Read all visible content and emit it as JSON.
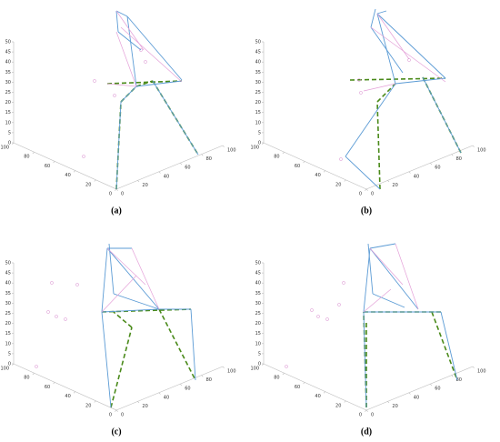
{
  "panels": [
    {
      "caption": "(a)",
      "zticks": [
        0,
        5,
        10,
        15,
        20,
        25,
        30,
        35,
        40,
        45,
        50
      ],
      "xticks": [
        0,
        20,
        40,
        60,
        80,
        100
      ],
      "yticks": [
        0,
        20,
        40,
        60,
        80,
        100
      ]
    },
    {
      "caption": "(b)",
      "zticks": [
        0,
        5,
        10,
        15,
        20,
        25,
        30,
        35,
        40,
        45,
        50
      ],
      "xticks": [
        0,
        20,
        40,
        60,
        80,
        100
      ],
      "yticks": [
        0,
        20,
        40,
        60,
        80,
        100
      ]
    },
    {
      "caption": "(c)",
      "zticks": [
        0,
        5,
        10,
        15,
        20,
        25,
        30,
        35,
        40,
        45,
        50
      ],
      "xticks": [
        0,
        20,
        40,
        60,
        80,
        100
      ],
      "yticks": [
        0,
        20,
        40,
        60,
        80,
        100
      ]
    },
    {
      "caption": "(d)",
      "zticks": [
        0,
        5,
        10,
        15,
        20,
        25,
        30,
        35,
        40,
        45,
        50
      ],
      "xticks": [
        0,
        20,
        40,
        60,
        80,
        100
      ],
      "yticks": [
        0,
        20,
        40,
        60,
        80,
        100
      ]
    }
  ]
}
